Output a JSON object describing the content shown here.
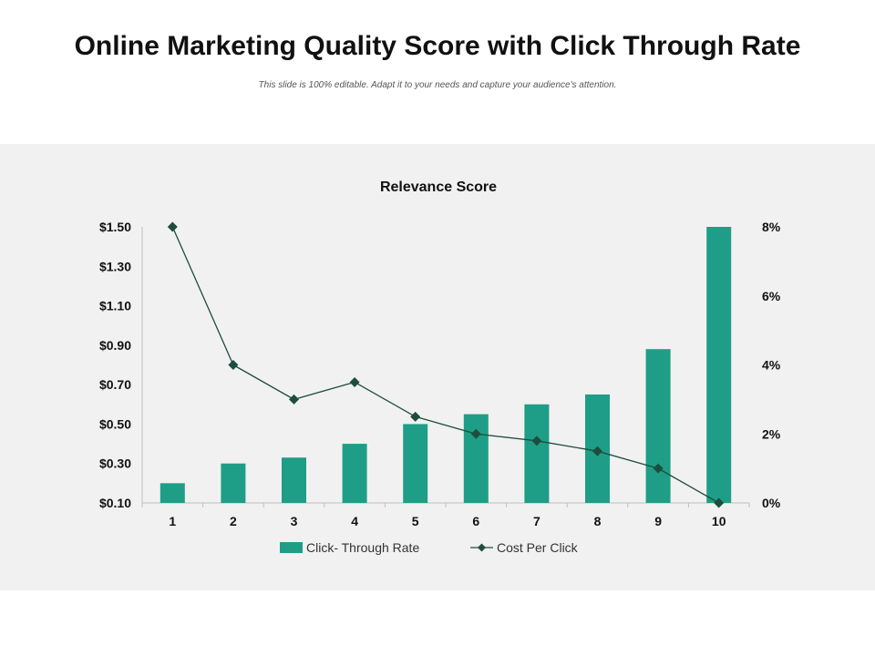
{
  "slide": {
    "title": "Online Marketing Quality Score with Click Through Rate",
    "subtitle": "This slide is 100% editable. Adapt it to your needs and capture your audience's attention."
  },
  "chart_data": {
    "type": "bar",
    "title": "Relevance Score",
    "categories": [
      "1",
      "2",
      "3",
      "4",
      "5",
      "6",
      "7",
      "8",
      "9",
      "10"
    ],
    "series": [
      {
        "name": "Click- Through Rate",
        "kind": "bar",
        "axis": "left",
        "color": "#1e9e86",
        "values": [
          0.2,
          0.3,
          0.33,
          0.4,
          0.5,
          0.55,
          0.6,
          0.65,
          0.88,
          1.5
        ]
      },
      {
        "name": "Cost Per Click",
        "kind": "line",
        "axis": "right",
        "color": "#1e4d3f",
        "values": [
          8.0,
          4.0,
          3.0,
          3.5,
          2.5,
          2.0,
          1.8,
          1.5,
          1.0,
          0.0
        ]
      }
    ],
    "y_left": {
      "min": 0.1,
      "max": 1.5,
      "ticks": [
        0.1,
        0.3,
        0.5,
        0.7,
        0.9,
        1.1,
        1.3,
        1.5
      ],
      "tick_labels": [
        "$0.10",
        "$0.30",
        "$0.50",
        "$0.70",
        "$0.90",
        "$1.10",
        "$1.30",
        "$1.50"
      ]
    },
    "y_right": {
      "min": 0,
      "max": 8,
      "ticks": [
        0,
        2,
        4,
        6,
        8
      ],
      "tick_labels": [
        "0%",
        "2%",
        "4%",
        "6%",
        "8%"
      ]
    },
    "legend_position": "bottom",
    "grid": false
  }
}
